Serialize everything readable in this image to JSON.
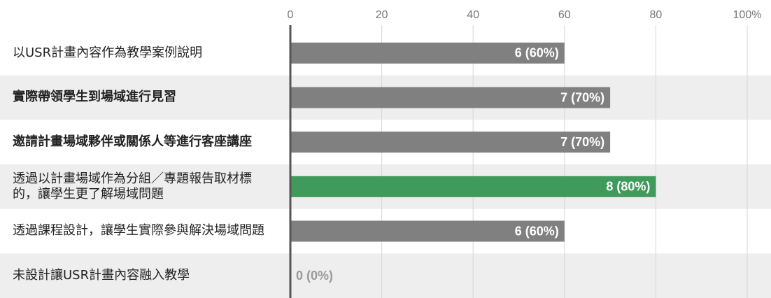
{
  "chart_data": {
    "type": "barh",
    "categories": [
      "以USR計畫內容作為教學案例說明",
      "實際帶領學生到場域進行見習",
      "邀請計畫場域夥伴或關係人等進行客座講座",
      "透過以計畫場域作為分組／專題報告取材標的，讓學生更了解場域問題",
      "透過課程設計，讓學生實際參與解決場域問題",
      "未設計讓USR計畫內容融入教學"
    ],
    "values": [
      60,
      70,
      70,
      80,
      60,
      0
    ],
    "value_labels": [
      "6 (60%)",
      "7 (70%)",
      "7 (70%)",
      "8 (80%)",
      "6 (60%)",
      "0 (0%)"
    ],
    "colors": [
      "#808080",
      "#808080",
      "#808080",
      "#3f9a5c",
      "#808080",
      "#808080"
    ],
    "category_bold": [
      false,
      true,
      true,
      false,
      false,
      false
    ],
    "xlim": [
      0,
      100
    ],
    "xticks": [
      0,
      20,
      40,
      60,
      80,
      {
        "value": 100,
        "label": "100%"
      }
    ],
    "grid": true
  }
}
